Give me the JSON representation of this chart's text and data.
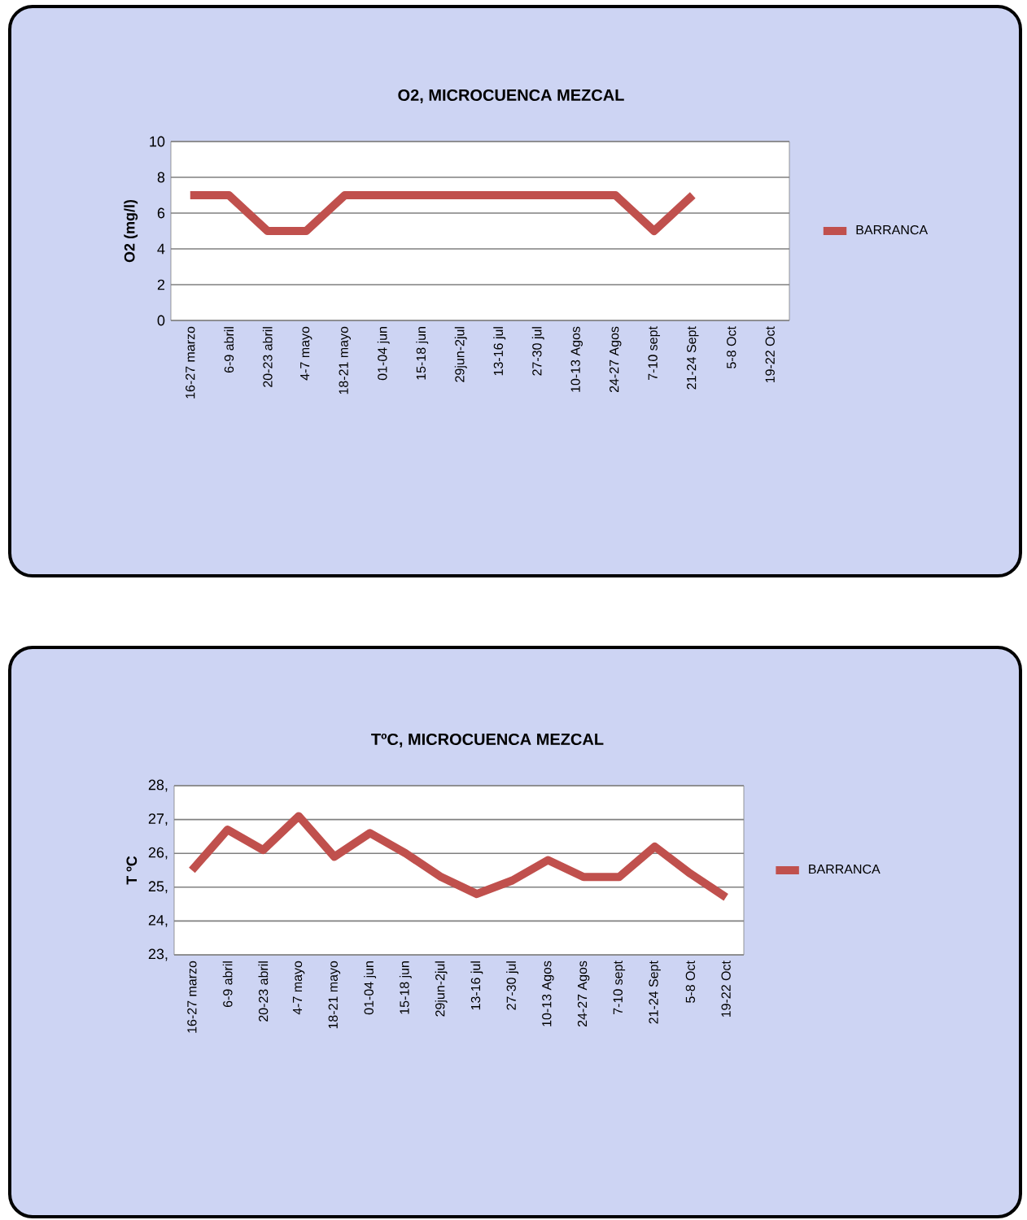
{
  "chart_data": [
    {
      "type": "line",
      "title": "O2, MICROCUENCA MEZCAL",
      "ylabel": "O2 (mg/l)",
      "categories": [
        "16-27 marzo",
        "6-9 abril",
        "20-23 abril",
        "4-7 mayo",
        "18-21 mayo",
        "01-04 jun",
        "15-18 jun",
        "29jun-2jul",
        "13-16 jul",
        "27-30 jul",
        "10-13 Agos",
        "24-27 Agos",
        "7-10 sept",
        "21-24 Sept",
        "5-8 Oct",
        "19-22 Oct"
      ],
      "series": [
        {
          "name": "BARRANCA",
          "color": "#c0504d",
          "values": [
            7,
            7,
            5,
            5,
            7,
            7,
            7,
            7,
            7,
            7,
            7,
            7,
            5,
            7,
            null,
            null
          ]
        }
      ],
      "ylim": [
        0,
        10
      ],
      "yticks": [
        0,
        2,
        4,
        6,
        8,
        10
      ],
      "grid": "y",
      "legend": "right"
    },
    {
      "type": "line",
      "title": "TºC, MICROCUENCA MEZCAL",
      "ylabel": "T ºC",
      "categories": [
        "16-27 marzo",
        "6-9 abril",
        "20-23 abril",
        "4-7 mayo",
        "18-21 mayo",
        "01-04 jun",
        "15-18 jun",
        "29jun-2jul",
        "13-16 jul",
        "27-30 jul",
        "10-13 Agos",
        "24-27 Agos",
        "7-10 sept",
        "21-24 Sept",
        "5-8 Oct",
        "19-22 Oct"
      ],
      "series": [
        {
          "name": "BARRANCA",
          "color": "#c0504d",
          "values": [
            25.5,
            26.7,
            26.1,
            27.1,
            25.9,
            26.6,
            26.0,
            25.3,
            24.8,
            25.2,
            25.8,
            25.3,
            25.3,
            26.2,
            25.4,
            24.7
          ]
        }
      ],
      "ylim": [
        23,
        28
      ],
      "yticks": [
        {
          "value": 23,
          "label": "23,"
        },
        {
          "value": 24,
          "label": "24,"
        },
        {
          "value": 25,
          "label": "25,"
        },
        {
          "value": 26,
          "label": "26,"
        },
        {
          "value": 27,
          "label": "27,"
        },
        {
          "value": 28,
          "label": "28,"
        }
      ],
      "grid": "y",
      "legend": "right"
    }
  ]
}
